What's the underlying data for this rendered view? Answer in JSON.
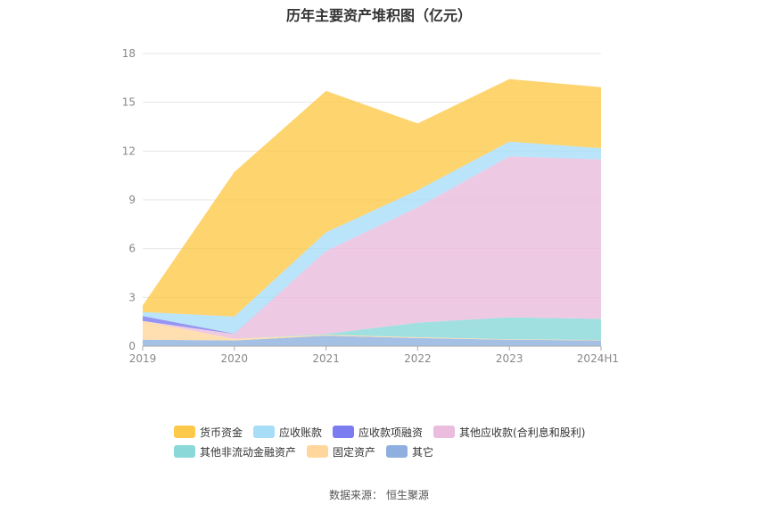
{
  "title": "历年主要资产堆积图（亿元）",
  "source": {
    "label": "数据来源：",
    "value": "恒生聚源"
  },
  "chart_data": {
    "type": "area",
    "stacked": true,
    "x": [
      "2019",
      "2020",
      "2021",
      "2022",
      "2023",
      "2024H1"
    ],
    "ylim": [
      0,
      18
    ],
    "yticks": [
      0,
      3,
      6,
      9,
      12,
      15,
      18
    ],
    "grid": true,
    "legend_position": "bottom",
    "series": [
      {
        "name": "其它",
        "color": "#8FB0DE",
        "values": [
          0.4,
          0.35,
          0.65,
          0.5,
          0.4,
          0.35
        ]
      },
      {
        "name": "固定资产",
        "color": "#FFD79C",
        "values": [
          1.15,
          0.1,
          0.05,
          0.05,
          0.03,
          0.03
        ]
      },
      {
        "name": "其他非流动金融资产",
        "color": "#8AD8D8",
        "values": [
          0.0,
          0.0,
          0.05,
          0.9,
          1.35,
          1.3
        ]
      },
      {
        "name": "其他应收款(合利息和股利)",
        "color": "#EABCDD",
        "values": [
          0.0,
          0.3,
          5.1,
          7.1,
          9.9,
          9.8
        ]
      },
      {
        "name": "应收款项融资",
        "color": "#7B7CEF",
        "values": [
          0.3,
          0.02,
          0.0,
          0.0,
          0.0,
          0.0
        ]
      },
      {
        "name": "应收账款",
        "color": "#A8DDF8",
        "values": [
          0.25,
          1.05,
          1.15,
          1.05,
          0.9,
          0.7
        ]
      },
      {
        "name": "货币资金",
        "color": "#FDC94A",
        "values": [
          0.4,
          8.9,
          8.7,
          4.1,
          3.85,
          3.75
        ]
      }
    ],
    "legend_order": [
      "货币资金",
      "应收账款",
      "应收款项融资",
      "其他应收款(合利息和股利)",
      "其他非流动金融资产",
      "固定资产",
      "其它"
    ]
  }
}
